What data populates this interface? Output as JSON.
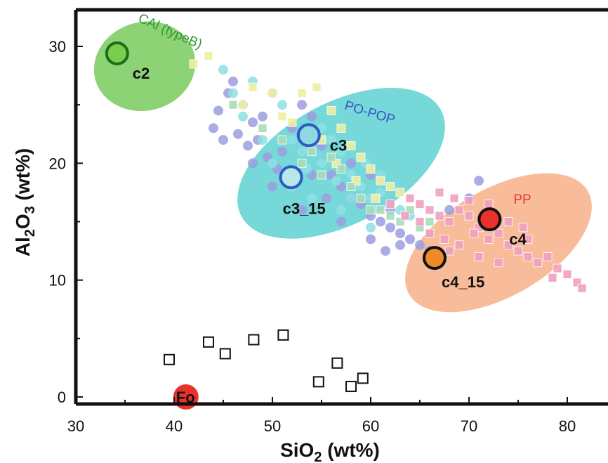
{
  "chart_data": {
    "type": "scatter",
    "title": "",
    "xlabel_main": "SiO",
    "xlabel_sub": "2",
    "xlabel_unit": "(wt%)",
    "ylabel_a": "Al",
    "ylabel_sub2": "2",
    "ylabel_b": "O",
    "ylabel_sub3": "3",
    "ylabel_unit": "(wt%)",
    "xlim": [
      30,
      85
    ],
    "ylim": [
      -1,
      33
    ],
    "x_ticks": [
      30,
      40,
      50,
      60,
      70,
      80
    ],
    "x_tick_labels": [
      "30",
      "40",
      "50",
      "60",
      "70",
      "80"
    ],
    "y_ticks": [
      0,
      10,
      20,
      30
    ],
    "y_tick_labels": [
      "0",
      "10",
      "20",
      "30"
    ],
    "grid": false,
    "fields": [
      {
        "name": "CAl (typeB)",
        "color": "#2e9a2e",
        "fill": "#5cbf3a",
        "cx": 37,
        "cy": 28.3,
        "rx_data": 5.2,
        "ry_data": 3.8,
        "angle": -15
      },
      {
        "name": "PO-POP",
        "color": "#3a56c4",
        "fill": "#3cc8c8",
        "cx": 57,
        "cy": 20,
        "rx_data": 11.5,
        "ry_data": 5.2,
        "angle": -28
      },
      {
        "name": "PP",
        "color": "#e83a2a",
        "fill": "#f5a070",
        "cx": 73,
        "cy": 13.2,
        "rx_data": 10.5,
        "ry_data": 4.6,
        "angle": -30
      }
    ],
    "labeled_points": [
      {
        "label": "c2",
        "x": 34.2,
        "y": 29.4,
        "ring": "#1a6e1a",
        "fill": "#7acc4a"
      },
      {
        "label": "c3",
        "x": 53.7,
        "y": 22.4,
        "ring": "#2a5cc4",
        "fill": "#8ed8e0"
      },
      {
        "label": "c3_15",
        "x": 51.9,
        "y": 18.8,
        "ring": "#2a5cc4",
        "fill": "#b8e8e8"
      },
      {
        "label": "c4",
        "x": 72.1,
        "y": 15.2,
        "ring": "#111111",
        "fill": "#e8322a"
      },
      {
        "label": "c4_15",
        "x": 66.5,
        "y": 11.9,
        "ring": "#111111",
        "fill": "#f08a28"
      },
      {
        "label": "Fo",
        "x": 41.2,
        "y": 0,
        "ring": "#e8322a",
        "fill": "#e8322a"
      }
    ],
    "open_squares": [
      {
        "x": 39.5,
        "y": 3.2
      },
      {
        "x": 43.5,
        "y": 4.7
      },
      {
        "x": 45.2,
        "y": 3.7
      },
      {
        "x": 48.1,
        "y": 4.9
      },
      {
        "x": 51.1,
        "y": 5.3
      },
      {
        "x": 54.7,
        "y": 1.3
      },
      {
        "x": 56.6,
        "y": 2.9
      },
      {
        "x": 58.0,
        "y": 0.9
      },
      {
        "x": 59.2,
        "y": 1.6
      }
    ],
    "cloud_series": [
      {
        "kind": "circle",
        "color": "#9c9ee0",
        "points": [
          [
            44,
            23
          ],
          [
            44.5,
            24.5
          ],
          [
            45.5,
            26
          ],
          [
            46,
            27
          ],
          [
            47,
            25
          ],
          [
            48,
            23.5
          ],
          [
            49,
            24
          ],
          [
            50,
            26
          ],
          [
            46.5,
            22.5
          ],
          [
            47.5,
            21.5
          ],
          [
            48.5,
            22
          ],
          [
            49.5,
            20.5
          ],
          [
            50.5,
            19.5
          ],
          [
            51,
            21
          ],
          [
            52,
            23
          ],
          [
            53,
            25
          ],
          [
            54,
            24
          ],
          [
            55,
            21.5
          ],
          [
            56,
            19
          ],
          [
            57,
            18
          ],
          [
            58,
            17
          ],
          [
            59,
            16.5
          ],
          [
            60,
            15.5
          ],
          [
            61,
            15
          ],
          [
            62,
            14.5
          ],
          [
            63,
            14
          ],
          [
            64,
            13.5
          ],
          [
            65,
            13
          ],
          [
            66,
            12.5
          ],
          [
            60,
            13.5
          ],
          [
            61.5,
            12.5
          ],
          [
            63,
            13
          ],
          [
            55.5,
            17
          ],
          [
            53,
            16
          ],
          [
            50,
            18
          ],
          [
            48,
            20
          ],
          [
            45,
            22
          ],
          [
            68,
            16
          ],
          [
            70,
            17
          ],
          [
            71,
            18.5
          ],
          [
            62,
            16
          ],
          [
            58,
            20
          ],
          [
            60,
            19
          ],
          [
            54,
            19
          ],
          [
            57,
            15
          ]
        ]
      },
      {
        "kind": "circle",
        "color": "#8ee0e4",
        "points": [
          [
            45,
            28
          ],
          [
            46,
            26
          ],
          [
            48,
            27
          ],
          [
            51,
            25
          ],
          [
            52,
            22
          ],
          [
            53,
            21
          ],
          [
            55,
            23
          ],
          [
            56,
            22
          ],
          [
            57,
            21
          ],
          [
            58,
            19
          ],
          [
            59,
            18
          ],
          [
            60,
            17
          ],
          [
            61,
            17.5
          ],
          [
            62,
            16.5
          ],
          [
            63,
            16
          ],
          [
            64,
            15.5
          ],
          [
            52,
            18
          ],
          [
            53.5,
            19.5
          ],
          [
            55,
            20
          ],
          [
            56.5,
            18.5
          ],
          [
            58,
            17
          ],
          [
            54,
            17
          ],
          [
            59.5,
            20
          ],
          [
            61,
            19
          ],
          [
            50,
            20
          ],
          [
            49,
            22
          ],
          [
            47,
            24
          ],
          [
            57,
            16
          ],
          [
            60,
            14.5
          ]
        ]
      },
      {
        "kind": "square",
        "color": "#f0eea0",
        "points": [
          [
            43.5,
            29.2
          ],
          [
            48,
            26.5
          ],
          [
            50,
            26
          ],
          [
            51,
            24
          ],
          [
            53,
            26
          ],
          [
            54.5,
            26.5
          ],
          [
            56,
            24.5
          ],
          [
            57,
            23
          ],
          [
            58,
            21.5
          ],
          [
            59,
            20.5
          ],
          [
            60,
            19.5
          ],
          [
            61,
            18.5
          ],
          [
            62,
            18
          ],
          [
            63,
            17.5
          ],
          [
            64,
            17
          ],
          [
            47,
            25
          ],
          [
            52,
            23.5
          ],
          [
            55,
            22
          ],
          [
            56.5,
            20
          ],
          [
            58.5,
            18.5
          ],
          [
            60.5,
            17
          ],
          [
            42,
            28.5
          ]
        ]
      },
      {
        "kind": "square",
        "color": "#a8dcb8",
        "points": [
          [
            46,
            25
          ],
          [
            49,
            23
          ],
          [
            51,
            22
          ],
          [
            53,
            20
          ],
          [
            55,
            19
          ],
          [
            57,
            19.5
          ],
          [
            59,
            17
          ],
          [
            61,
            16
          ],
          [
            63,
            15
          ],
          [
            65,
            14.5
          ],
          [
            54,
            21
          ],
          [
            56,
            20.5
          ],
          [
            58,
            18
          ],
          [
            60,
            16
          ],
          [
            62,
            15.5
          ],
          [
            64,
            16
          ],
          [
            66,
            15
          ]
        ]
      },
      {
        "kind": "square",
        "color": "#f0a0c0",
        "points": [
          [
            64,
            17
          ],
          [
            65,
            16.5
          ],
          [
            66,
            16
          ],
          [
            67,
            15.5
          ],
          [
            68,
            15
          ],
          [
            69,
            16
          ],
          [
            70,
            15.5
          ],
          [
            71,
            14.5
          ],
          [
            72,
            13.5
          ],
          [
            73,
            14
          ],
          [
            74,
            13
          ],
          [
            75,
            12.5
          ],
          [
            76,
            12
          ],
          [
            77,
            11.5
          ],
          [
            78,
            12
          ],
          [
            79,
            11
          ],
          [
            80,
            10.5
          ],
          [
            81,
            9.8
          ],
          [
            67,
            17.5
          ],
          [
            68.5,
            17
          ],
          [
            70,
            16.8
          ],
          [
            66,
            14
          ],
          [
            67.5,
            13.5
          ],
          [
            69,
            13
          ],
          [
            70.5,
            14
          ],
          [
            72,
            16.5
          ],
          [
            74,
            15
          ],
          [
            75.5,
            14.5
          ],
          [
            65,
            15
          ],
          [
            63.5,
            15.5
          ],
          [
            68,
            12.5
          ],
          [
            71,
            12
          ],
          [
            73,
            11.5
          ],
          [
            76,
            13.5
          ],
          [
            81.5,
            9.3
          ],
          [
            62,
            16.5
          ],
          [
            78.5,
            10.2
          ]
        ]
      }
    ]
  }
}
